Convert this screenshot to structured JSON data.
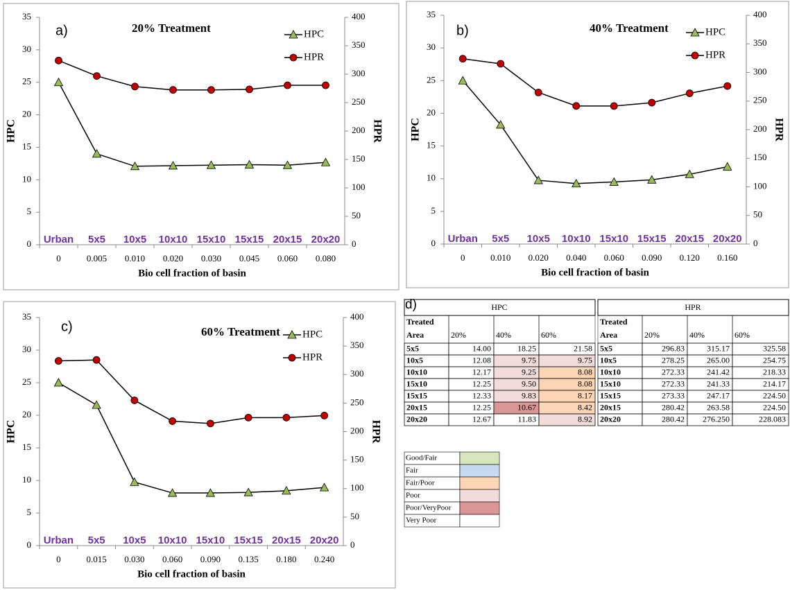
{
  "chart_data": [
    {
      "type": "line",
      "panel": "a)",
      "title": "20% Treatment",
      "xlabel": "Bio cell fraction of basin",
      "ylabel": "HPC",
      "y2label": "HPR",
      "categories": [
        "0",
        "0.005",
        "0.010",
        "0.020",
        "0.030",
        "0.045",
        "0.060",
        "0.080"
      ],
      "treated_areas": [
        "Urban",
        "5x5",
        "10x5",
        "10x10",
        "15x10",
        "15x15",
        "20x15",
        "20x20"
      ],
      "ylim": [
        0,
        35
      ],
      "yticks": [
        0,
        5,
        10,
        15,
        20,
        25,
        30,
        35
      ],
      "y2lim": [
        0,
        400
      ],
      "y2ticks": [
        0,
        50,
        100,
        150,
        200,
        250,
        300,
        350,
        400
      ],
      "series": [
        {
          "name": "HPC",
          "color": "#9bbb59",
          "marker": "triangle",
          "values": [
            25,
            14.0,
            12.08,
            12.17,
            12.25,
            12.33,
            12.25,
            12.67
          ]
        },
        {
          "name": "HPR",
          "color": "#c00000",
          "marker": "circle",
          "axis": "y2",
          "values": [
            324,
            296.83,
            278.25,
            272.33,
            272.33,
            273.33,
            280.42,
            280.42
          ]
        }
      ]
    },
    {
      "type": "line",
      "panel": "b)",
      "title": "40% Treatment",
      "xlabel": "Bio cell fraction of basin",
      "ylabel": "HPC",
      "y2label": "HPR",
      "categories": [
        "0",
        "0.010",
        "0.020",
        "0.040",
        "0.060",
        "0.090",
        "0.120",
        "0.160"
      ],
      "treated_areas": [
        "Urban",
        "5x5",
        "10x5",
        "10x10",
        "15x10",
        "15x15",
        "20x15",
        "20x20"
      ],
      "ylim": [
        0,
        35
      ],
      "yticks": [
        0,
        5,
        10,
        15,
        20,
        25,
        30,
        35
      ],
      "y2lim": [
        0,
        400
      ],
      "y2ticks": [
        0,
        50,
        100,
        150,
        200,
        250,
        300,
        350,
        400
      ],
      "series": [
        {
          "name": "HPC",
          "color": "#9bbb59",
          "marker": "triangle",
          "values": [
            25,
            18.25,
            9.75,
            9.25,
            9.5,
            9.83,
            10.67,
            11.83
          ]
        },
        {
          "name": "HPR",
          "color": "#c00000",
          "marker": "circle",
          "axis": "y2",
          "values": [
            324,
            315.17,
            265.0,
            241.42,
            241.33,
            247.17,
            263.58,
            276.25
          ]
        }
      ]
    },
    {
      "type": "line",
      "panel": "c)",
      "title": "60% Treatment",
      "xlabel": "Bio cell fraction of basin",
      "ylabel": "HPC",
      "y2label": "HPR",
      "categories": [
        "0",
        "0.015",
        "0.030",
        "0.060",
        "0.090",
        "0.135",
        "0.180",
        "0.240"
      ],
      "treated_areas": [
        "Urban",
        "5x5",
        "10x5",
        "10x10",
        "15x10",
        "15x15",
        "20x15",
        "20x20"
      ],
      "ylim": [
        0,
        35
      ],
      "yticks": [
        0,
        5,
        10,
        15,
        20,
        25,
        30,
        35
      ],
      "y2lim": [
        0,
        400
      ],
      "y2ticks": [
        0,
        50,
        100,
        150,
        200,
        250,
        300,
        350,
        400
      ],
      "series": [
        {
          "name": "HPC",
          "color": "#9bbb59",
          "marker": "triangle",
          "values": [
            25,
            21.58,
            9.75,
            8.08,
            8.08,
            8.17,
            8.42,
            8.92
          ]
        },
        {
          "name": "HPR",
          "color": "#c00000",
          "marker": "circle",
          "axis": "y2",
          "values": [
            324,
            325.58,
            254.75,
            218.33,
            214.17,
            224.5,
            224.5,
            228.083
          ]
        }
      ]
    }
  ],
  "table": {
    "label": "d)",
    "groups": [
      {
        "title": "HPC",
        "row_header": [
          "Treated",
          "Area"
        ],
        "columns": [
          "20%",
          "40%",
          "60%"
        ],
        "rows": [
          [
            "5x5",
            "14.00",
            "18.25",
            "21.58"
          ],
          [
            "10x5",
            "12.08",
            "9.75",
            "9.75"
          ],
          [
            "10x10",
            "12.17",
            "9.25",
            "8.08"
          ],
          [
            "15x10",
            "12.25",
            "9.50",
            "8.08"
          ],
          [
            "15x15",
            "12.33",
            "9.83",
            "8.17"
          ],
          [
            "20x15",
            "12.25",
            "10.67",
            "8.42"
          ],
          [
            "20x20",
            "12.67",
            "11.83",
            "8.92"
          ]
        ],
        "fills": [
          [
            null,
            null,
            null
          ],
          [
            null,
            "#f2dcdb",
            "#f2dcdb"
          ],
          [
            null,
            "#f2dcdb",
            "#fcd5b4"
          ],
          [
            null,
            "#f2dcdb",
            "#fcd5b4"
          ],
          [
            null,
            "#f2dcdb",
            "#fcd5b4"
          ],
          [
            null,
            "#da9694",
            "#fcd5b4"
          ],
          [
            null,
            null,
            "#f2dcdb"
          ]
        ]
      },
      {
        "title": "HPR",
        "row_header": [
          "Treated",
          "Area"
        ],
        "columns": [
          "20%",
          "40%",
          "60%"
        ],
        "rows": [
          [
            "5x5",
            "296.83",
            "315.17",
            "325.58"
          ],
          [
            "10x5",
            "278.25",
            "265.00",
            "254.75"
          ],
          [
            "10x10",
            "272.33",
            "241.42",
            "218.33"
          ],
          [
            "15x10",
            "272.33",
            "241.33",
            "214.17"
          ],
          [
            "15x15",
            "273.33",
            "247.17",
            "224.50"
          ],
          [
            "20x15",
            "280.42",
            "263.58",
            "224.50"
          ],
          [
            "20x20",
            "280.42",
            "276.250",
            "228.083"
          ]
        ]
      }
    ],
    "legend": [
      {
        "label": "Good/Fair",
        "color": "#d7e4bd"
      },
      {
        "label": "Fair",
        "color": "#c5d9f1"
      },
      {
        "label": "Fair/Poor",
        "color": "#fcd5b4"
      },
      {
        "label": "Poor",
        "color": "#f2dcdb"
      },
      {
        "label": "Poor/VeryPoor",
        "color": "#da9694"
      },
      {
        "label": "Very Poor",
        "color": "#ffffff"
      }
    ]
  }
}
